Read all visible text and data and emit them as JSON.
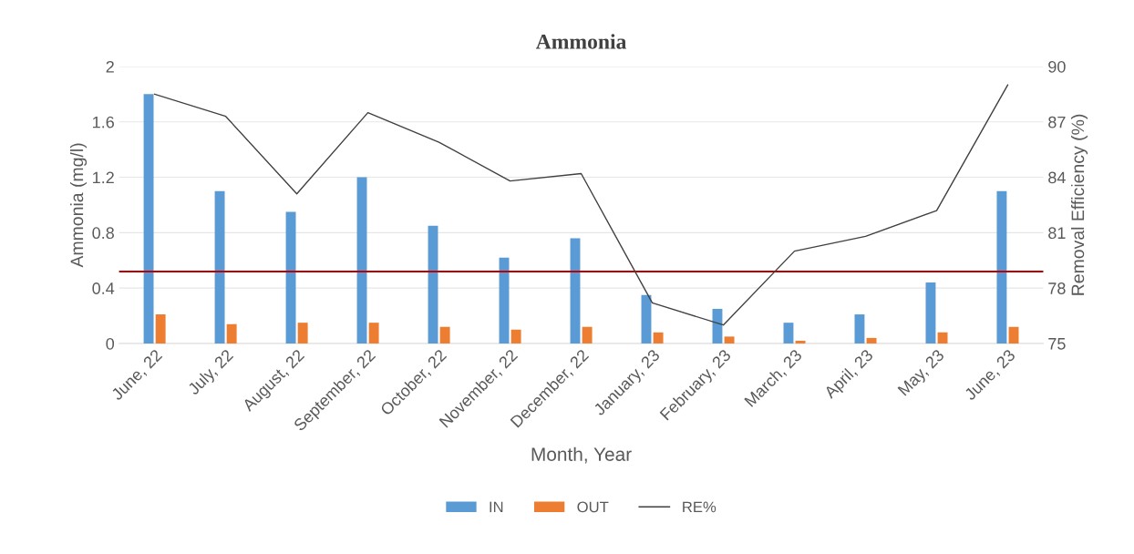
{
  "chart_data": {
    "type": "bar",
    "title": "Ammonia",
    "xlabel": "Month, Year",
    "ylabel": "Ammonia (mg/l)",
    "y2label": "Removal Efficiency (%)",
    "categories": [
      "June, 22",
      "July, 22",
      "August, 22",
      "September, 22",
      "October, 22",
      "November, 22",
      "December, 22",
      "January, 23",
      "February, 23",
      "March, 23",
      "April, 23",
      "May, 23",
      "June, 23"
    ],
    "series": [
      {
        "name": "IN",
        "color": "#5b9bd5",
        "values": [
          1.8,
          1.1,
          0.95,
          1.2,
          0.85,
          0.62,
          0.76,
          0.35,
          0.25,
          0.15,
          0.21,
          0.44,
          1.1
        ]
      },
      {
        "name": "OUT",
        "color": "#ed7d31",
        "values": [
          0.21,
          0.14,
          0.15,
          0.15,
          0.12,
          0.1,
          0.12,
          0.08,
          0.05,
          0.02,
          0.04,
          0.08,
          0.12
        ]
      },
      {
        "name": "RE%",
        "type": "line",
        "axis": "y2",
        "color": "#404040",
        "values": [
          88.5,
          87.3,
          83.1,
          87.5,
          85.9,
          83.8,
          84.2,
          77.2,
          76.0,
          80.0,
          80.8,
          82.2,
          89.0
        ]
      }
    ],
    "ylim": [
      0,
      2
    ],
    "yticks": [
      0,
      0.4,
      0.8,
      1.2,
      1.6,
      2
    ],
    "y2lim": [
      75,
      90
    ],
    "y2ticks": [
      75,
      78,
      81,
      84,
      87,
      90
    ],
    "ref_lines": [
      {
        "axis": "y",
        "value": 0.52,
        "color": "#c00000"
      }
    ],
    "grid": "y",
    "legend": "bottom"
  }
}
